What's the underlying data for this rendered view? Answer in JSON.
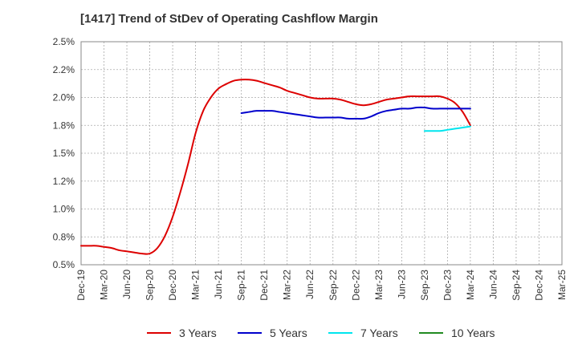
{
  "chart_data": {
    "type": "line",
    "title": "[1417]  Trend of StDev of Operating Cashflow Margin",
    "xlabel": "",
    "ylabel": "",
    "x_labels": [
      "Dec-19",
      "Mar-20",
      "Jun-20",
      "Sep-20",
      "Dec-20",
      "Mar-21",
      "Jun-21",
      "Sep-21",
      "Dec-21",
      "Mar-22",
      "Jun-22",
      "Sep-22",
      "Dec-22",
      "Mar-23",
      "Jun-23",
      "Sep-23",
      "Dec-23",
      "Mar-24",
      "Jun-24",
      "Sep-24",
      "Dec-24",
      "Mar-25"
    ],
    "y_ticks": [
      "0.5%",
      "0.8%",
      "1.0%",
      "1.2%",
      "1.5%",
      "1.8%",
      "2.0%",
      "2.2%",
      "2.5%"
    ],
    "y_tick_values": [
      0.5,
      0.75,
      1.0,
      1.25,
      1.5,
      1.75,
      2.0,
      2.25,
      2.5
    ],
    "ylim": [
      0.5,
      2.5
    ],
    "grid": true,
    "legend_position": "bottom",
    "series": [
      {
        "name": "3 Years",
        "color": "#dd0000",
        "points": [
          [
            "Dec-19",
            0.67
          ],
          [
            "Jan-20",
            0.67
          ],
          [
            "Feb-20",
            0.67
          ],
          [
            "Mar-20",
            0.66
          ],
          [
            "Apr-20",
            0.65
          ],
          [
            "May-20",
            0.63
          ],
          [
            "Jun-20",
            0.62
          ],
          [
            "Jul-20",
            0.61
          ],
          [
            "Aug-20",
            0.6
          ],
          [
            "Sep-20",
            0.6
          ],
          [
            "Oct-20",
            0.65
          ],
          [
            "Nov-20",
            0.76
          ],
          [
            "Dec-20",
            0.93
          ],
          [
            "Jan-21",
            1.15
          ],
          [
            "Feb-21",
            1.4
          ],
          [
            "Mar-21",
            1.68
          ],
          [
            "Apr-21",
            1.88
          ],
          [
            "May-21",
            2.0
          ],
          [
            "Jun-21",
            2.08
          ],
          [
            "Jul-21",
            2.12
          ],
          [
            "Aug-21",
            2.15
          ],
          [
            "Sep-21",
            2.16
          ],
          [
            "Oct-21",
            2.16
          ],
          [
            "Nov-21",
            2.15
          ],
          [
            "Dec-21",
            2.13
          ],
          [
            "Jan-22",
            2.11
          ],
          [
            "Feb-22",
            2.09
          ],
          [
            "Mar-22",
            2.06
          ],
          [
            "Apr-22",
            2.04
          ],
          [
            "May-22",
            2.02
          ],
          [
            "Jun-22",
            2.0
          ],
          [
            "Jul-22",
            1.99
          ],
          [
            "Aug-22",
            1.99
          ],
          [
            "Sep-22",
            1.99
          ],
          [
            "Oct-22",
            1.98
          ],
          [
            "Nov-22",
            1.96
          ],
          [
            "Dec-22",
            1.94
          ],
          [
            "Jan-23",
            1.93
          ],
          [
            "Feb-23",
            1.94
          ],
          [
            "Mar-23",
            1.96
          ],
          [
            "Apr-23",
            1.98
          ],
          [
            "May-23",
            1.99
          ],
          [
            "Jun-23",
            2.0
          ],
          [
            "Jul-23",
            2.01
          ],
          [
            "Aug-23",
            2.01
          ],
          [
            "Sep-23",
            2.01
          ],
          [
            "Oct-23",
            2.01
          ],
          [
            "Nov-23",
            2.01
          ],
          [
            "Dec-23",
            1.99
          ],
          [
            "Jan-24",
            1.95
          ],
          [
            "Feb-24",
            1.87
          ],
          [
            "Mar-24",
            1.75
          ]
        ]
      },
      {
        "name": "5 Years",
        "color": "#0000cc",
        "points": [
          [
            "Sep-21",
            1.86
          ],
          [
            "Oct-21",
            1.87
          ],
          [
            "Nov-21",
            1.88
          ],
          [
            "Dec-21",
            1.88
          ],
          [
            "Jan-22",
            1.88
          ],
          [
            "Feb-22",
            1.87
          ],
          [
            "Mar-22",
            1.86
          ],
          [
            "Apr-22",
            1.85
          ],
          [
            "May-22",
            1.84
          ],
          [
            "Jun-22",
            1.83
          ],
          [
            "Jul-22",
            1.82
          ],
          [
            "Aug-22",
            1.82
          ],
          [
            "Sep-22",
            1.82
          ],
          [
            "Oct-22",
            1.82
          ],
          [
            "Nov-22",
            1.81
          ],
          [
            "Dec-22",
            1.81
          ],
          [
            "Jan-23",
            1.81
          ],
          [
            "Feb-23",
            1.83
          ],
          [
            "Mar-23",
            1.86
          ],
          [
            "Apr-23",
            1.88
          ],
          [
            "May-23",
            1.89
          ],
          [
            "Jun-23",
            1.9
          ],
          [
            "Jul-23",
            1.9
          ],
          [
            "Aug-23",
            1.91
          ],
          [
            "Sep-23",
            1.91
          ],
          [
            "Oct-23",
            1.9
          ],
          [
            "Nov-23",
            1.9
          ],
          [
            "Dec-23",
            1.9
          ],
          [
            "Jan-24",
            1.9
          ],
          [
            "Feb-24",
            1.9
          ],
          [
            "Mar-24",
            1.9
          ]
        ]
      },
      {
        "name": "7 Years",
        "color": "#00e5ee",
        "points": [
          [
            "Sep-23",
            1.7
          ],
          [
            "Oct-23",
            1.7
          ],
          [
            "Nov-23",
            1.7
          ],
          [
            "Dec-23",
            1.71
          ],
          [
            "Jan-24",
            1.72
          ],
          [
            "Feb-24",
            1.73
          ],
          [
            "Mar-24",
            1.74
          ]
        ]
      },
      {
        "name": "10 Years",
        "color": "#228b22",
        "points": []
      }
    ]
  }
}
